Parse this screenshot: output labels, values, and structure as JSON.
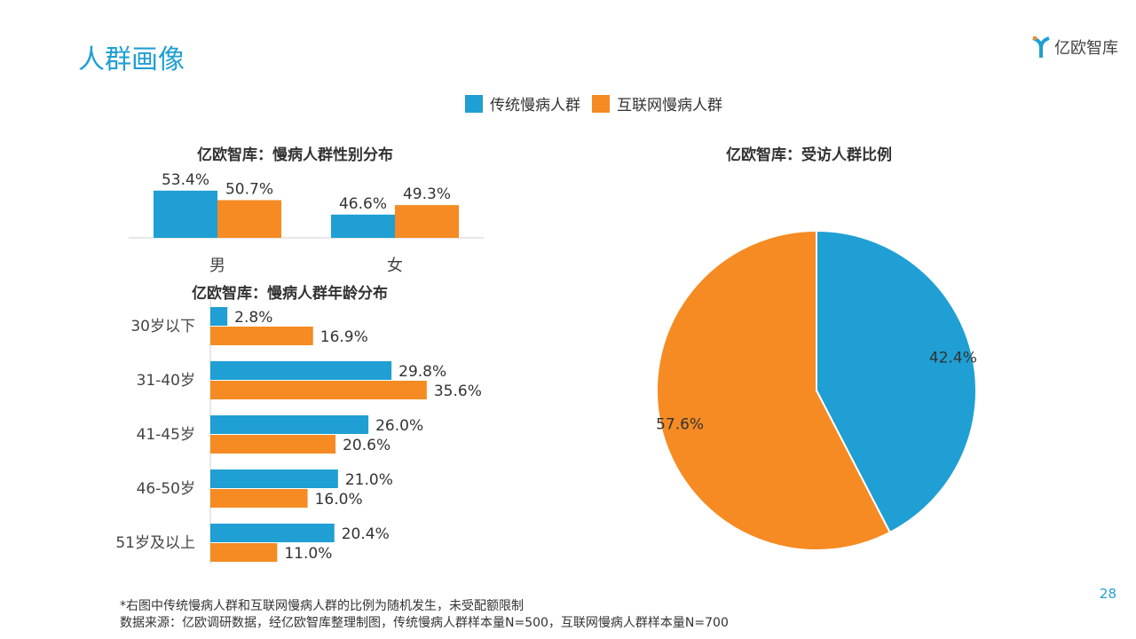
{
  "title": "人群画像",
  "logo": {
    "text": "亿欧智库"
  },
  "legend": [
    {
      "name": "传统慢病人群",
      "color": "#1f9fd3"
    },
    {
      "name": "互联网慢病人群",
      "color": "#f58b22"
    }
  ],
  "footnote": "*右图中传统慢病人群和互联网慢病人群的比例为随机发生，未受配额限制",
  "source": "数据来源：亿欧调研数据，经亿欧智库整理制图，传统慢病人群样本量N=500，互联网慢病人群样本量N=700",
  "page_number": "28",
  "chart_data": [
    {
      "type": "bar",
      "title": "亿欧智库：慢病人群性别分布",
      "categories": [
        "男",
        "女"
      ],
      "ylim": [
        40,
        60
      ],
      "series": [
        {
          "name": "传统慢病人群",
          "values": [
            53.4,
            46.6
          ],
          "labels": [
            "53.4%",
            "46.6%"
          ]
        },
        {
          "name": "互联网慢病人群",
          "values": [
            50.7,
            49.3
          ],
          "labels": [
            "50.7%",
            "49.3%"
          ]
        }
      ]
    },
    {
      "type": "bar",
      "orientation": "horizontal",
      "title": "亿欧智库：慢病人群年龄分布",
      "categories": [
        "30岁以下",
        "31-40岁",
        "41-45岁",
        "46-50岁",
        "51岁及以上"
      ],
      "series": [
        {
          "name": "传统慢病人群",
          "values": [
            2.8,
            29.8,
            26.0,
            21.0,
            20.4
          ],
          "labels": [
            "2.8%",
            "29.8%",
            "26.0%",
            "21.0%",
            "20.4%"
          ]
        },
        {
          "name": "互联网慢病人群",
          "values": [
            16.9,
            35.6,
            20.6,
            16.0,
            11.0
          ],
          "labels": [
            "16.9%",
            "35.6%",
            "20.6%",
            "16.0%",
            "11.0%"
          ]
        }
      ]
    },
    {
      "type": "pie",
      "title": "亿欧智库：受访人群比例",
      "slices": [
        {
          "name": "传统慢病人群",
          "value": 42.4,
          "label": "42.4%"
        },
        {
          "name": "互联网慢病人群",
          "value": 57.6,
          "label": "57.6%"
        }
      ]
    }
  ]
}
